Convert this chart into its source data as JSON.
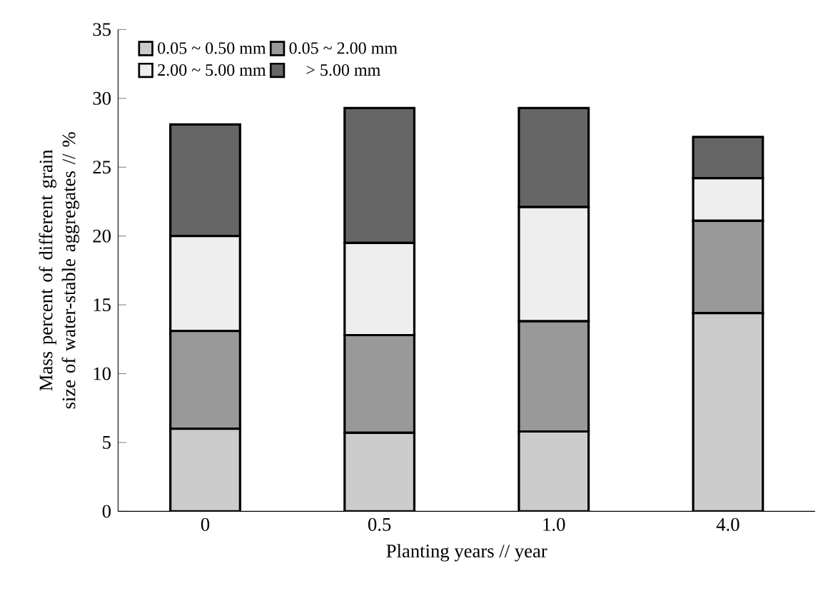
{
  "chart_data": {
    "type": "bar",
    "stacked": true,
    "xlabel": "Planting years // year",
    "ylabel": "Mass percent of different grain size of water-stable aggregates // %",
    "categories": [
      "0",
      "0.5",
      "1.0",
      "4.0"
    ],
    "series": [
      {
        "name": "0.05 ~ 0.50 mm",
        "color": "#cccccc",
        "values": [
          6.0,
          5.7,
          5.8,
          14.4
        ]
      },
      {
        "name": "0.05 ~ 2.00 mm",
        "color": "#999999",
        "values": [
          7.1,
          7.1,
          8.0,
          6.7
        ]
      },
      {
        "name": "2.00 ~ 5.00 mm",
        "color": "#eeeeee",
        "values": [
          6.9,
          6.7,
          8.3,
          3.1
        ]
      },
      {
        "name": "> 5.00 mm",
        "color": "#666666",
        "values": [
          8.1,
          9.8,
          7.2,
          3.0
        ]
      }
    ],
    "ylim": [
      0,
      35
    ],
    "yticks": [
      0,
      5,
      10,
      15,
      20,
      25,
      30,
      35
    ],
    "legend": "top left",
    "grid": false
  }
}
